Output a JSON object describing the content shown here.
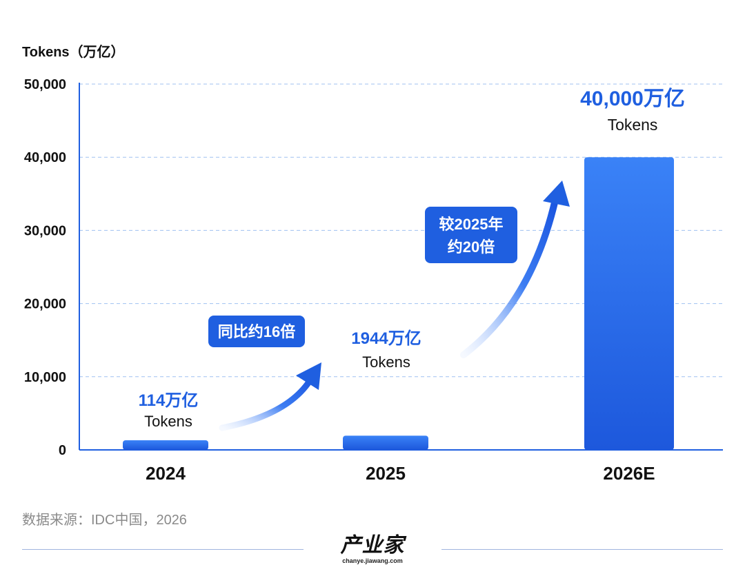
{
  "chart_data": {
    "type": "bar",
    "unit_label": "Tokens（万亿）",
    "categories": [
      "2024",
      "2025",
      "2026E"
    ],
    "values": [
      114,
      1944,
      40000
    ],
    "ylim": [
      0,
      50000
    ],
    "y_ticks": [
      "0",
      "10,000",
      "20,000",
      "30,000",
      "40,000",
      "50,000"
    ],
    "grid": true,
    "bar_color": "#2a6ef0",
    "accent_color": "#1f5fe0",
    "data_labels": [
      {
        "value": "114万亿",
        "unit": "Tokens"
      },
      {
        "value": "1944万亿",
        "unit": "Tokens"
      },
      {
        "value": "40,000万亿",
        "unit": "Tokens"
      }
    ],
    "annotations": [
      {
        "lines": [
          "同比约16倍"
        ]
      },
      {
        "lines": [
          "较2025年",
          "约20倍"
        ]
      }
    ]
  },
  "source": "数据来源：IDC中国，2026",
  "logo": {
    "main": "产业家",
    "sub": "chanye.jiawang.com"
  }
}
